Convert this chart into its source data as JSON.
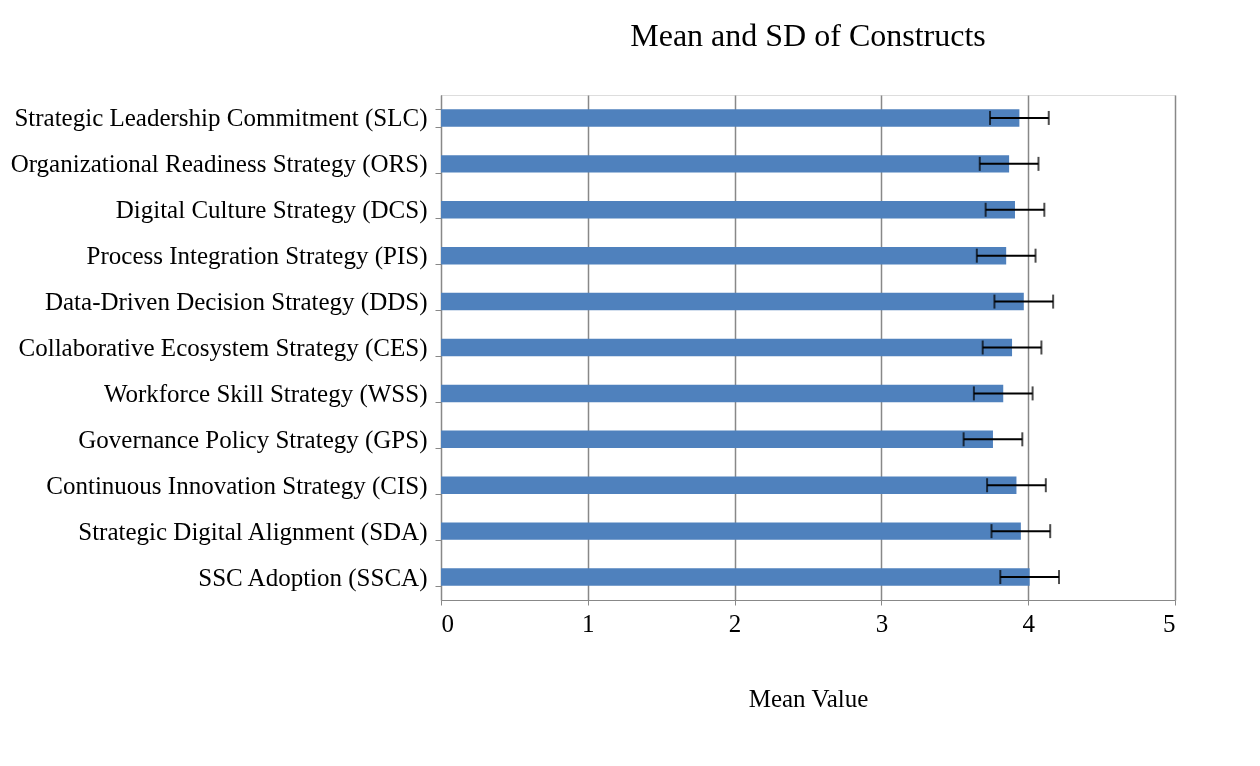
{
  "chart_data": {
    "type": "bar",
    "orientation": "horizontal",
    "title": "Mean and SD of Constructs",
    "xlabel": "Mean Value",
    "categories": [
      "Strategic Leadership Commitment (SLC)",
      "Organizational Readiness Strategy (ORS)",
      "Digital Culture Strategy (DCS)",
      "Process Integration Strategy (PIS)",
      "Data-Driven Decision Strategy (DDS)",
      "Collaborative Ecosystem Strategy (CES)",
      "Workforce Skill Strategy (WSS)",
      "Governance Policy Strategy (GPS)",
      "Continuous Innovation Strategy (CIS)",
      "Strategic Digital Alignment (SDA)",
      "SSC Adoption (SSCA)"
    ],
    "values": [
      3.94,
      3.87,
      3.91,
      3.85,
      3.97,
      3.89,
      3.83,
      3.76,
      3.92,
      3.95,
      4.01
    ],
    "errors": [
      0.2,
      0.2,
      0.2,
      0.2,
      0.2,
      0.2,
      0.2,
      0.2,
      0.2,
      0.2,
      0.2
    ],
    "color": "#4f81bd",
    "xlim": [
      0,
      5
    ],
    "xticks": [
      0,
      1,
      2,
      3,
      4,
      5
    ],
    "grid": "x"
  }
}
